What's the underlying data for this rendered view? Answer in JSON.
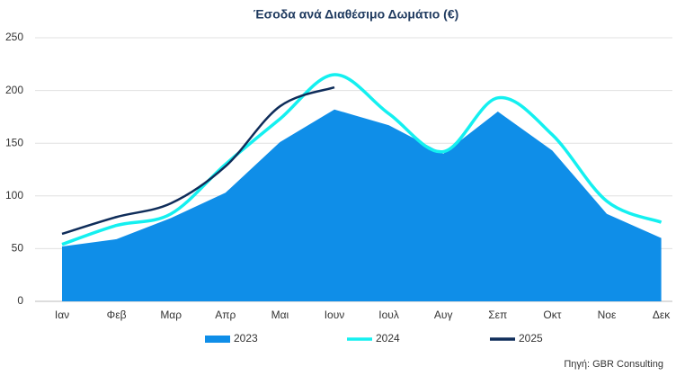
{
  "chart_data": {
    "type": "area_line",
    "title": "Έσοδα ανά Διαθέσιμο Δωμάτιο (€)",
    "source": "Πηγή: GBR Consulting",
    "categories": [
      "Ιαν",
      "Φεβ",
      "Μαρ",
      "Απρ",
      "Μαι",
      "Ιουν",
      "Ιουλ",
      "Αυγ",
      "Σεπ",
      "Οκτ",
      "Νοε",
      "Δεκ"
    ],
    "series": [
      {
        "name": "2023",
        "color": "#0f8ee8",
        "kind": "area",
        "values": [
          52,
          59,
          79,
          103,
          151,
          182,
          167,
          140,
          180,
          143,
          83,
          60
        ]
      },
      {
        "name": "2024",
        "color": "#14f0f0",
        "kind": "line",
        "values": [
          54,
          72,
          83,
          130,
          173,
          215,
          178,
          142,
          193,
          158,
          95,
          75
        ]
      },
      {
        "name": "2025",
        "color": "#0f2d5a",
        "kind": "line",
        "values": [
          64,
          80,
          93,
          128,
          185,
          203,
          null,
          null,
          null,
          null,
          null,
          null
        ]
      }
    ],
    "ylim": [
      0,
      250
    ],
    "yticks": [
      0,
      50,
      100,
      150,
      200,
      250
    ],
    "grid": true,
    "legend": "bottom"
  }
}
